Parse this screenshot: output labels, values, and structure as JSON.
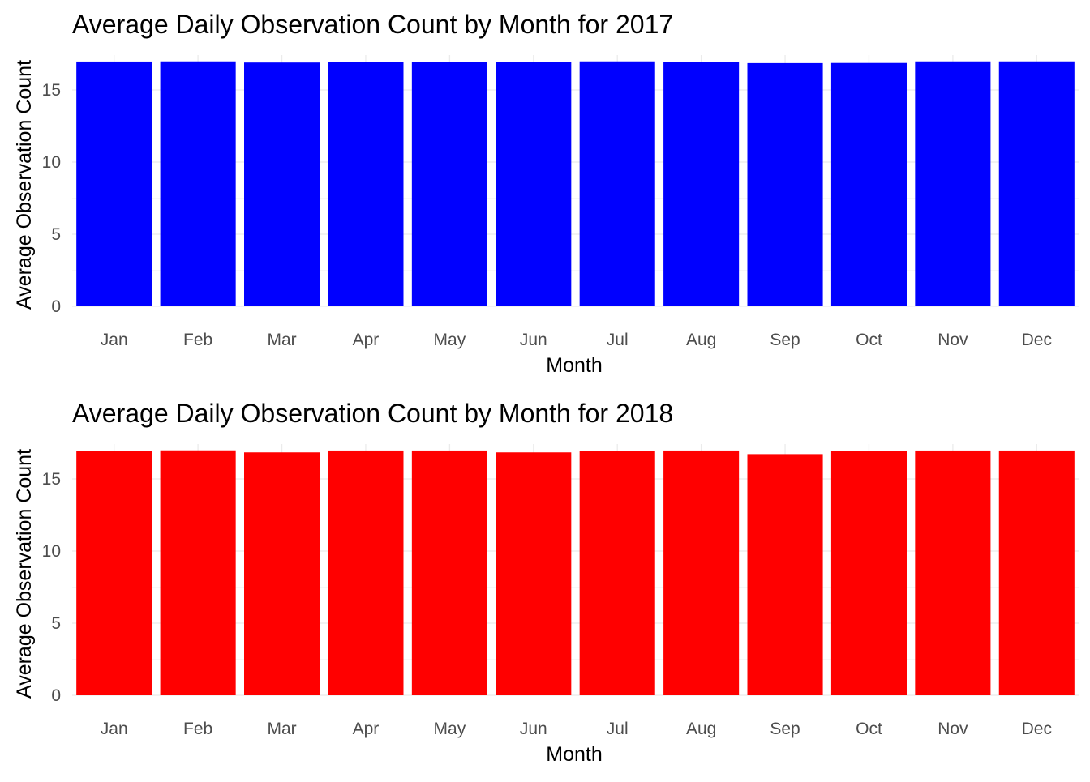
{
  "colors": {
    "background": "#ffffff",
    "grid": "#ebebeb",
    "tick_text": "#4d4d4d"
  },
  "chart_data": [
    {
      "type": "bar",
      "title": "Average Daily Observation Count by Month for 2017",
      "xlabel": "Month",
      "ylabel": "Average Observation Count",
      "categories": [
        "Jan",
        "Feb",
        "Mar",
        "Apr",
        "May",
        "Jun",
        "Jul",
        "Aug",
        "Sep",
        "Oct",
        "Nov",
        "Dec"
      ],
      "values": [
        16.97,
        16.98,
        16.9,
        16.92,
        16.92,
        16.96,
        16.98,
        16.92,
        16.86,
        16.87,
        16.98,
        16.98
      ],
      "yticks": [
        0,
        5,
        10,
        15
      ],
      "ylim": [
        0,
        17.8
      ],
      "bar_color": "#0000ff",
      "grid": true,
      "legend": "none"
    },
    {
      "type": "bar",
      "title": "Average Daily Observation Count by Month for 2018",
      "xlabel": "Month",
      "ylabel": "Average Observation Count",
      "categories": [
        "Jan",
        "Feb",
        "Mar",
        "Apr",
        "May",
        "Jun",
        "Jul",
        "Aug",
        "Sep",
        "Oct",
        "Nov",
        "Dec"
      ],
      "values": [
        16.92,
        16.98,
        16.84,
        16.97,
        16.97,
        16.84,
        16.96,
        16.97,
        16.72,
        16.92,
        16.97,
        16.97
      ],
      "yticks": [
        0,
        5,
        10,
        15
      ],
      "ylim": [
        0,
        17.8
      ],
      "bar_color": "#ff0000",
      "grid": true,
      "legend": "none"
    }
  ]
}
